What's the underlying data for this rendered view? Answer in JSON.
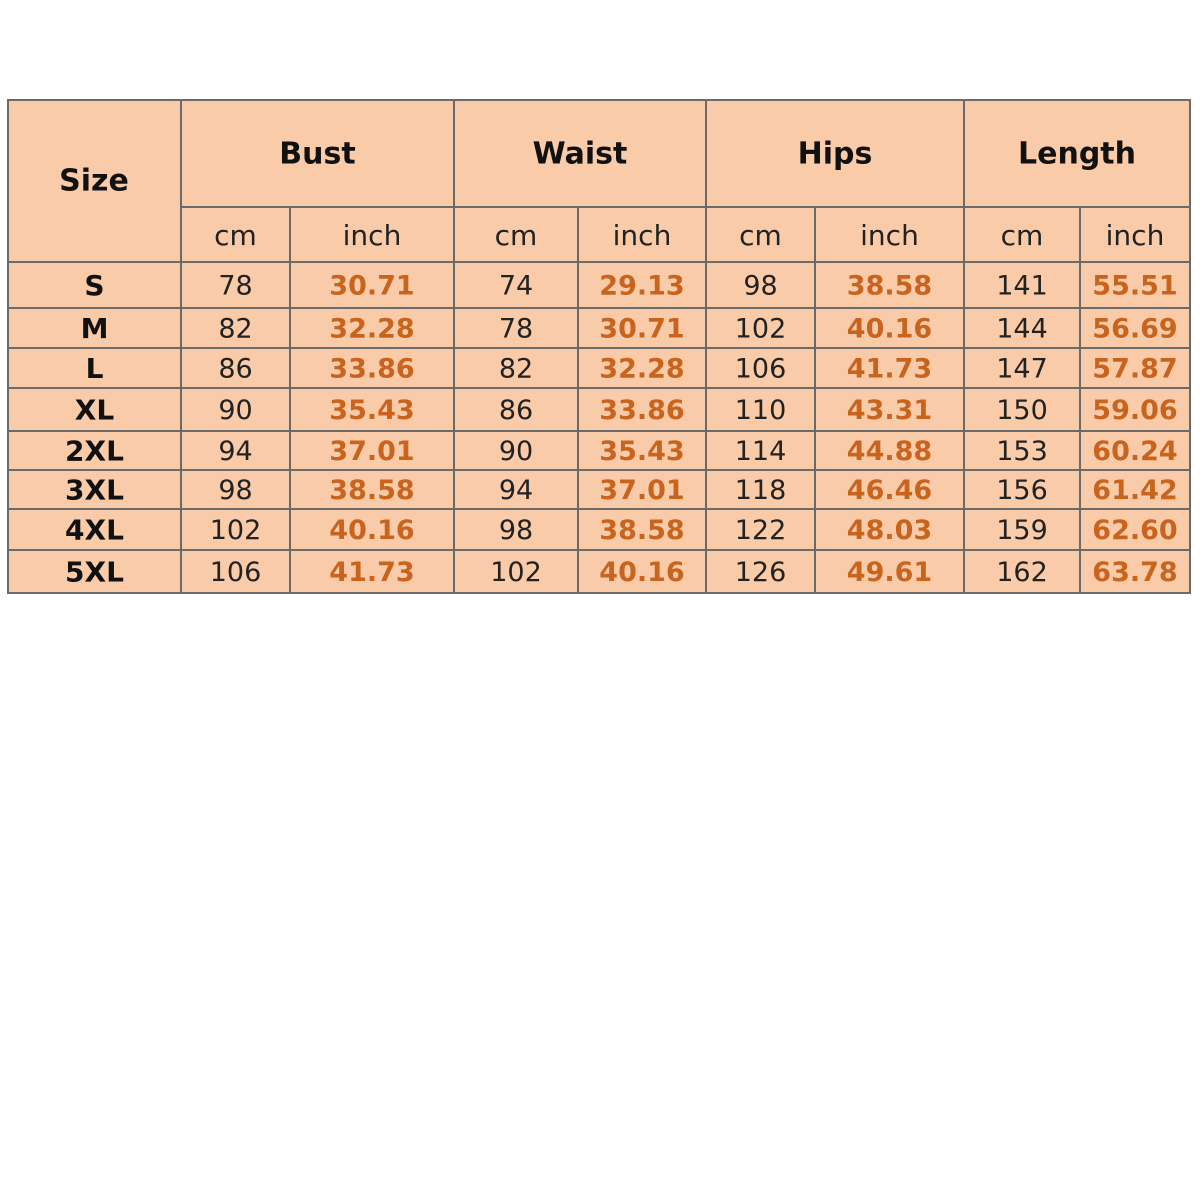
{
  "table": {
    "header": [
      "Size",
      "Bust",
      "Waist",
      "Hips",
      "Length"
    ],
    "units": [
      "cm",
      "inch",
      "cm",
      "inch",
      "cm",
      "inch",
      "cm",
      "inch"
    ],
    "rows": [
      [
        "S",
        "78",
        "30.71",
        "74",
        "29.13",
        "98",
        "38.58",
        "141",
        "55.51"
      ],
      [
        "M",
        "82",
        "32.28",
        "78",
        "30.71",
        "102",
        "40.16",
        "144",
        "56.69"
      ],
      [
        "L",
        "86",
        "33.86",
        "82",
        "32.28",
        "106",
        "41.73",
        "147",
        "57.87"
      ],
      [
        "XL",
        "90",
        "35.43",
        "86",
        "33.86",
        "110",
        "43.31",
        "150",
        "59.06"
      ],
      [
        "2XL",
        "94",
        "37.01",
        "90",
        "35.43",
        "114",
        "44.88",
        "153",
        "60.24"
      ],
      [
        "3XL",
        "98",
        "38.58",
        "94",
        "37.01",
        "118",
        "46.46",
        "156",
        "61.42"
      ],
      [
        "4XL",
        "102",
        "40.16",
        "98",
        "38.58",
        "122",
        "48.03",
        "159",
        "62.60"
      ],
      [
        "5XL",
        "106",
        "41.73",
        "102",
        "40.16",
        "126",
        "49.61",
        "162",
        "63.78"
      ]
    ]
  }
}
